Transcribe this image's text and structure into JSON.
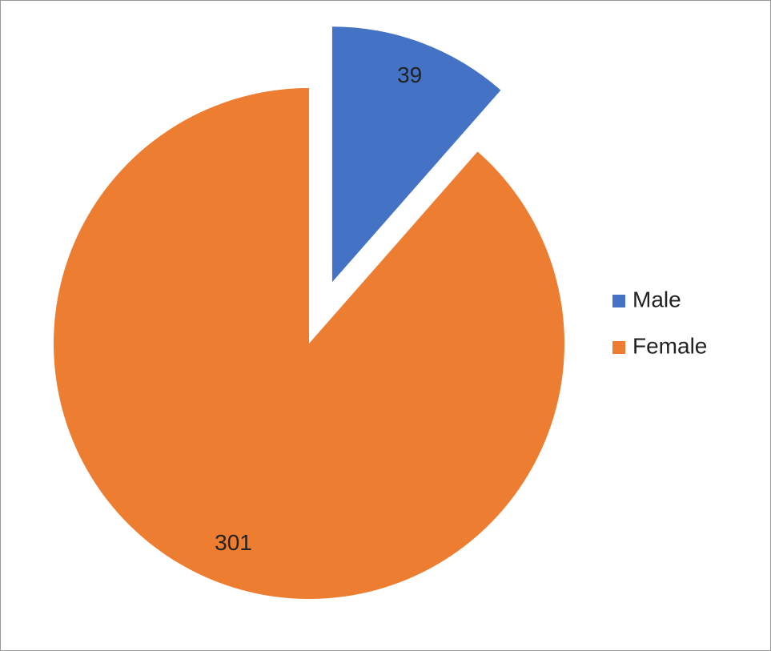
{
  "chart_data": {
    "type": "pie",
    "categories": [
      "Male",
      "Female"
    ],
    "values": [
      39,
      301
    ],
    "colors": [
      "#4472c4",
      "#ed7d31"
    ],
    "legend": "right"
  }
}
